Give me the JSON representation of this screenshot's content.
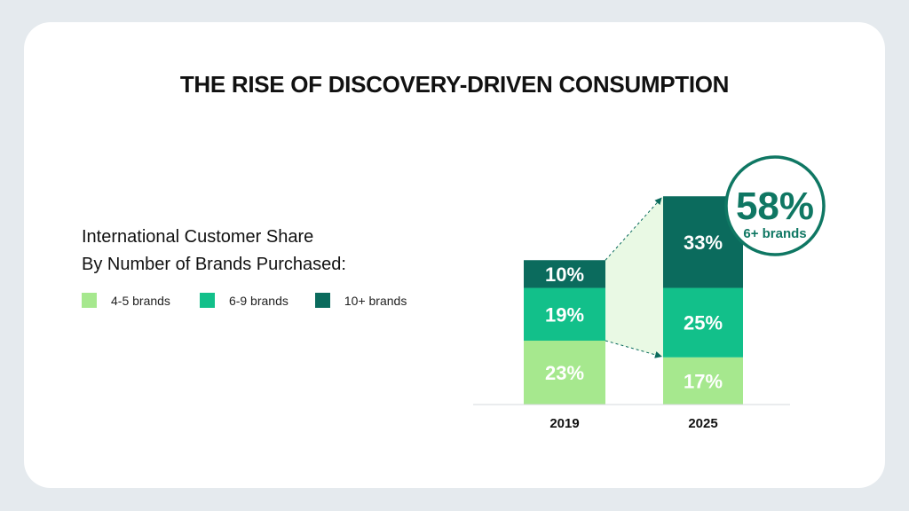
{
  "title": "THE RISE OF DISCOVERY-DRIVEN CONSUMPTION",
  "subtitle_line1": "International Customer Share",
  "subtitle_line2": "By Number of Brands Purchased:",
  "colors": {
    "4-5 brands": "#a6e88e",
    "6-9 brands": "#12c08a",
    "10+ brands": "#0b6b5d",
    "connector": "#e9f9e4",
    "circle": "#0f7763"
  },
  "chart_data": {
    "type": "bar",
    "stacked": true,
    "categories": [
      "2019",
      "2025"
    ],
    "series": [
      {
        "name": "4-5 brands",
        "values": [
          23,
          17
        ]
      },
      {
        "name": "6-9 brands",
        "values": [
          19,
          25
        ]
      },
      {
        "name": "10+ brands",
        "values": [
          10,
          33
        ]
      }
    ],
    "data_labels": [
      [
        "23%",
        "17%"
      ],
      [
        "19%",
        "25%"
      ],
      [
        "10%",
        "33%"
      ]
    ],
    "legend_position": "left",
    "annotation": {
      "value": "58%",
      "label": "6+ brands"
    },
    "grid": false
  }
}
